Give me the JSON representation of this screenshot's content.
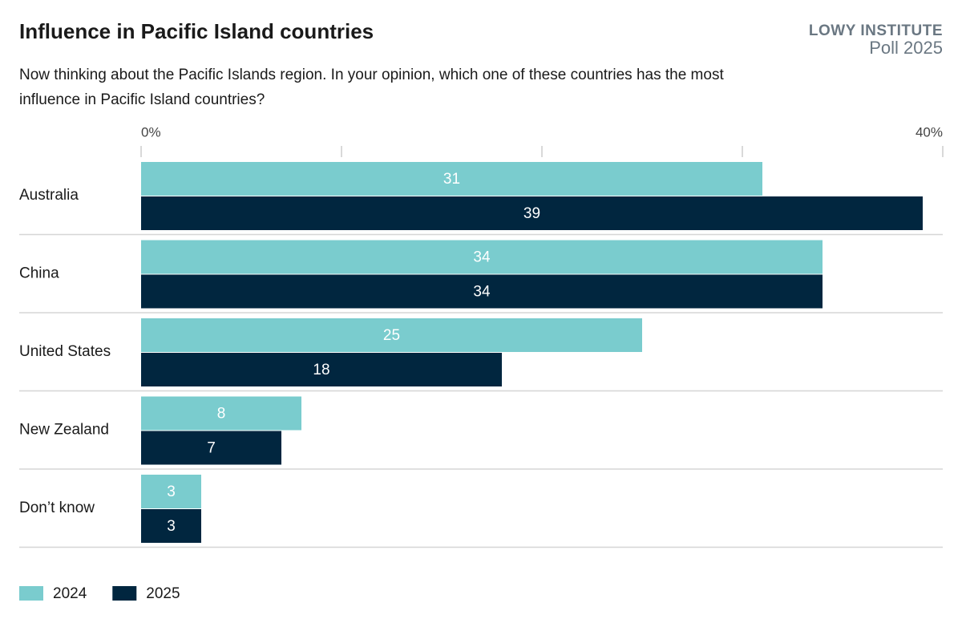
{
  "brand": {
    "name": "LOWY INSTITUTE",
    "edition": "Poll 2025"
  },
  "chart_data": {
    "type": "bar",
    "orientation": "horizontal",
    "title": "Influence in Pacific Island countries",
    "subtitle": "Now thinking about the Pacific Islands region. In your opinion, which one of these countries has the most influence in Pacific Island countries?",
    "categories": [
      "Australia",
      "China",
      "United States",
      "New Zealand",
      "Don’t know"
    ],
    "series": [
      {
        "name": "2024",
        "color": "#7accce",
        "values": [
          31,
          34,
          25,
          8,
          3
        ]
      },
      {
        "name": "2025",
        "color": "#01263f",
        "values": [
          39,
          34,
          18,
          7,
          3
        ]
      }
    ],
    "xlim": [
      0,
      40
    ],
    "xticks": [
      {
        "value": 0,
        "label": "0%"
      },
      {
        "value": 10,
        "label": null
      },
      {
        "value": 20,
        "label": null
      },
      {
        "value": 30,
        "label": null
      },
      {
        "value": 40,
        "label": "40%"
      }
    ],
    "legend": "bottom-left"
  }
}
